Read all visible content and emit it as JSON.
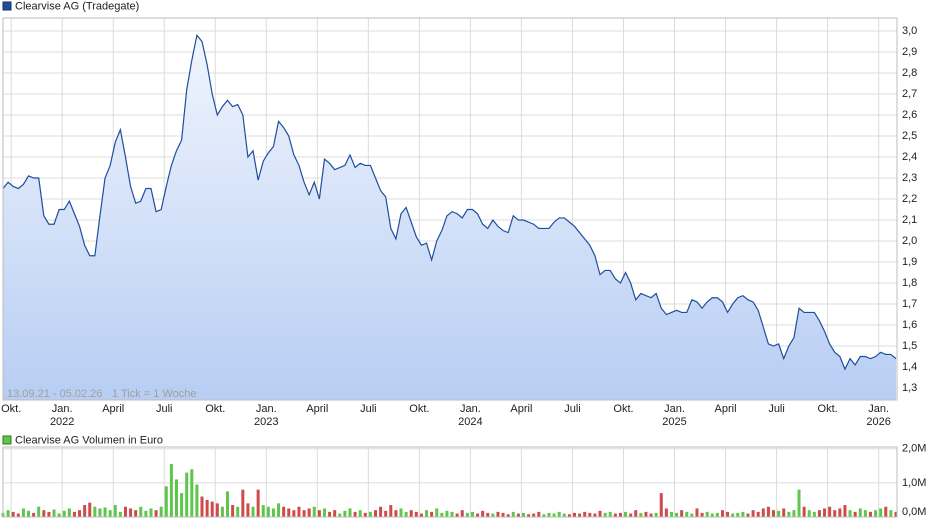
{
  "chart_data": {
    "type": "line",
    "annotations": [
      "13.09.21 - 05.02.26",
      "1 Tick = 1 Woche"
    ],
    "x": [
      2021.71,
      2021.735,
      2021.76,
      2021.785,
      2021.81,
      2021.835,
      2021.86,
      2021.885,
      2021.91,
      2021.935,
      2021.96,
      2021.985,
      2022.01,
      2022.035,
      2022.06,
      2022.085,
      2022.11,
      2022.135,
      2022.16,
      2022.185,
      2022.21,
      2022.235,
      2022.26,
      2022.285,
      2022.31,
      2022.335,
      2022.36,
      2022.385,
      2022.41,
      2022.435,
      2022.46,
      2022.485,
      2022.51,
      2022.535,
      2022.56,
      2022.585,
      2022.61,
      2022.635,
      2022.66,
      2022.685,
      2022.71,
      2022.735,
      2022.76,
      2022.785,
      2022.81,
      2022.835,
      2022.86,
      2022.885,
      2022.91,
      2022.935,
      2022.96,
      2022.985,
      2023.01,
      2023.035,
      2023.06,
      2023.085,
      2023.11,
      2023.135,
      2023.16,
      2023.185,
      2023.21,
      2023.235,
      2023.26,
      2023.285,
      2023.31,
      2023.335,
      2023.36,
      2023.385,
      2023.41,
      2023.435,
      2023.46,
      2023.485,
      2023.51,
      2023.535,
      2023.56,
      2023.585,
      2023.61,
      2023.635,
      2023.66,
      2023.685,
      2023.71,
      2023.735,
      2023.76,
      2023.785,
      2023.81,
      2023.835,
      2023.86,
      2023.885,
      2023.91,
      2023.935,
      2023.96,
      2023.985,
      2024.01,
      2024.035,
      2024.06,
      2024.085,
      2024.11,
      2024.135,
      2024.16,
      2024.185,
      2024.21,
      2024.235,
      2024.26,
      2024.285,
      2024.31,
      2024.335,
      2024.36,
      2024.385,
      2024.41,
      2024.435,
      2024.46,
      2024.485,
      2024.51,
      2024.535,
      2024.56,
      2024.585,
      2024.61,
      2024.635,
      2024.66,
      2024.685,
      2024.71,
      2024.735,
      2024.76,
      2024.785,
      2024.81,
      2024.835,
      2024.86,
      2024.885,
      2024.91,
      2024.935,
      2024.96,
      2024.985,
      2025.01,
      2025.035,
      2025.06,
      2025.085,
      2025.11,
      2025.135,
      2025.16,
      2025.185,
      2025.21,
      2025.235,
      2025.26,
      2025.285,
      2025.31,
      2025.335,
      2025.36,
      2025.385,
      2025.41,
      2025.435,
      2025.46,
      2025.485,
      2025.51,
      2025.535,
      2025.56,
      2025.585,
      2025.61,
      2025.635,
      2025.66,
      2025.685,
      2025.71,
      2025.735,
      2025.76,
      2025.785,
      2025.81,
      2025.835,
      2025.86,
      2025.885,
      2025.91,
      2025.935,
      2025.96,
      2025.985,
      2026.01,
      2026.035,
      2026.06,
      2026.085
    ],
    "series": [
      {
        "name": "Clearvise AG (Tradegate)",
        "type": "area",
        "color": "#1f4e9c",
        "values": [
          2.25,
          2.28,
          2.26,
          2.25,
          2.27,
          2.31,
          2.3,
          2.3,
          2.12,
          2.08,
          2.08,
          2.15,
          2.15,
          2.19,
          2.13,
          2.07,
          1.98,
          1.93,
          1.93,
          2.12,
          2.3,
          2.36,
          2.47,
          2.53,
          2.4,
          2.26,
          2.18,
          2.19,
          2.25,
          2.25,
          2.14,
          2.15,
          2.26,
          2.36,
          2.43,
          2.48,
          2.72,
          2.86,
          2.98,
          2.95,
          2.84,
          2.7,
          2.6,
          2.64,
          2.67,
          2.64,
          2.65,
          2.6,
          2.4,
          2.43,
          2.29,
          2.38,
          2.42,
          2.45,
          2.57,
          2.54,
          2.5,
          2.41,
          2.36,
          2.28,
          2.22,
          2.28,
          2.2,
          2.39,
          2.37,
          2.34,
          2.35,
          2.36,
          2.41,
          2.35,
          2.37,
          2.36,
          2.36,
          2.3,
          2.24,
          2.21,
          2.06,
          2.01,
          2.13,
          2.16,
          2.09,
          2.02,
          1.98,
          1.99,
          1.91,
          2.0,
          2.05,
          2.12,
          2.14,
          2.13,
          2.11,
          2.15,
          2.15,
          2.13,
          2.08,
          2.06,
          2.1,
          2.07,
          2.05,
          2.04,
          2.12,
          2.1,
          2.1,
          2.09,
          2.08,
          2.06,
          2.06,
          2.06,
          2.09,
          2.11,
          2.11,
          2.09,
          2.07,
          2.04,
          2.01,
          1.98,
          1.93,
          1.84,
          1.86,
          1.86,
          1.82,
          1.8,
          1.85,
          1.8,
          1.72,
          1.75,
          1.74,
          1.73,
          1.75,
          1.68,
          1.65,
          1.66,
          1.67,
          1.66,
          1.66,
          1.72,
          1.71,
          1.68,
          1.71,
          1.73,
          1.73,
          1.71,
          1.66,
          1.7,
          1.73,
          1.74,
          1.72,
          1.71,
          1.67,
          1.59,
          1.51,
          1.5,
          1.51,
          1.44,
          1.5,
          1.54,
          1.68,
          1.66,
          1.66,
          1.66,
          1.62,
          1.57,
          1.51,
          1.47,
          1.45,
          1.39,
          1.44,
          1.41,
          1.45,
          1.45,
          1.44,
          1.45,
          1.47,
          1.46,
          1.46,
          1.44
        ]
      },
      {
        "name": "Clearvise AG Volumen in Euro",
        "type": "bar",
        "axis": "y2",
        "color": "#5ec64a",
        "up_color": "#5ec64a",
        "down_color": "#d04a4a",
        "values": [
          0.12,
          0.2,
          0.15,
          0.1,
          0.25,
          0.18,
          0.12,
          0.3,
          0.2,
          0.15,
          0.22,
          0.1,
          0.18,
          0.25,
          0.15,
          0.2,
          0.35,
          0.42,
          0.3,
          0.25,
          0.28,
          0.2,
          0.35,
          0.15,
          0.3,
          0.25,
          0.2,
          0.3,
          0.18,
          0.25,
          0.2,
          0.3,
          0.9,
          1.55,
          1.1,
          0.7,
          1.3,
          1.4,
          0.95,
          0.6,
          0.5,
          0.45,
          0.4,
          0.3,
          0.75,
          0.35,
          0.3,
          0.8,
          0.4,
          0.3,
          0.8,
          0.35,
          0.3,
          0.25,
          0.4,
          0.3,
          0.25,
          0.2,
          0.3,
          0.2,
          0.25,
          0.3,
          0.2,
          0.25,
          0.15,
          0.2,
          0.1,
          0.18,
          0.25,
          0.15,
          0.2,
          0.12,
          0.15,
          0.2,
          0.3,
          0.18,
          0.35,
          0.2,
          0.25,
          0.15,
          0.2,
          0.15,
          0.1,
          0.2,
          0.15,
          0.25,
          0.12,
          0.18,
          0.15,
          0.1,
          0.2,
          0.12,
          0.15,
          0.1,
          0.18,
          0.12,
          0.1,
          0.15,
          0.12,
          0.08,
          0.15,
          0.1,
          0.12,
          0.08,
          0.1,
          0.15,
          0.08,
          0.12,
          0.1,
          0.15,
          0.1,
          0.08,
          0.12,
          0.1,
          0.15,
          0.12,
          0.1,
          0.18,
          0.12,
          0.15,
          0.1,
          0.12,
          0.15,
          0.1,
          0.2,
          0.12,
          0.15,
          0.1,
          0.12,
          0.7,
          0.25,
          0.15,
          0.12,
          0.2,
          0.15,
          0.1,
          0.25,
          0.12,
          0.15,
          0.1,
          0.12,
          0.2,
          0.15,
          0.1,
          0.12,
          0.15,
          0.1,
          0.2,
          0.15,
          0.25,
          0.3,
          0.2,
          0.18,
          0.25,
          0.15,
          0.2,
          0.8,
          0.3,
          0.2,
          0.15,
          0.2,
          0.25,
          0.3,
          0.2,
          0.25,
          0.35,
          0.2,
          0.15,
          0.25,
          0.2,
          0.15,
          0.2,
          0.25,
          0.3,
          0.2,
          0.15
        ]
      }
    ],
    "xlim": [
      2021.71,
      2026.09
    ],
    "xticks": [
      {
        "value": 2021.75,
        "label": "Okt."
      },
      {
        "value": 2022.0,
        "label": "Jan."
      },
      {
        "value": 2022.25,
        "label": "April"
      },
      {
        "value": 2022.5,
        "label": "Juli"
      },
      {
        "value": 2022.75,
        "label": "Okt."
      },
      {
        "value": 2023.0,
        "label": "Jan."
      },
      {
        "value": 2023.25,
        "label": "April"
      },
      {
        "value": 2023.5,
        "label": "Juli"
      },
      {
        "value": 2023.75,
        "label": "Okt."
      },
      {
        "value": 2024.0,
        "label": "Jan."
      },
      {
        "value": 2024.25,
        "label": "April"
      },
      {
        "value": 2024.5,
        "label": "Juli"
      },
      {
        "value": 2024.75,
        "label": "Okt."
      },
      {
        "value": 2025.0,
        "label": "Jan."
      },
      {
        "value": 2025.25,
        "label": "April"
      },
      {
        "value": 2025.5,
        "label": "Juli"
      },
      {
        "value": 2025.75,
        "label": "Okt."
      },
      {
        "value": 2026.0,
        "label": "Jan."
      }
    ],
    "xyearticks": [
      2022,
      2023,
      2024,
      2025,
      2026
    ],
    "ylim": [
      1.243,
      3.062
    ],
    "yticks": [
      {
        "value": 1.3,
        "label": "1,3"
      },
      {
        "value": 1.4,
        "label": "1,4"
      },
      {
        "value": 1.5,
        "label": "1,5"
      },
      {
        "value": 1.6,
        "label": "1,6"
      },
      {
        "value": 1.7,
        "label": "1,7"
      },
      {
        "value": 1.8,
        "label": "1,8"
      },
      {
        "value": 1.9,
        "label": "1,9"
      },
      {
        "value": 2.0,
        "label": "2,0"
      },
      {
        "value": 2.1,
        "label": "2,1"
      },
      {
        "value": 2.2,
        "label": "2,2"
      },
      {
        "value": 2.3,
        "label": "2,3"
      },
      {
        "value": 2.4,
        "label": "2,4"
      },
      {
        "value": 2.5,
        "label": "2,5"
      },
      {
        "value": 2.6,
        "label": "2,6"
      },
      {
        "value": 2.7,
        "label": "2,7"
      },
      {
        "value": 2.8,
        "label": "2,8"
      },
      {
        "value": 2.9,
        "label": "2,9"
      },
      {
        "value": 3.0,
        "label": "3,0"
      }
    ],
    "y2lim": [
      0,
      2.05
    ],
    "y2ticks": [
      {
        "value": 0,
        "label": "0,0M"
      },
      {
        "value": 1,
        "label": "1,0M"
      },
      {
        "value": 2,
        "label": "2,0M"
      }
    ],
    "grid": true
  }
}
